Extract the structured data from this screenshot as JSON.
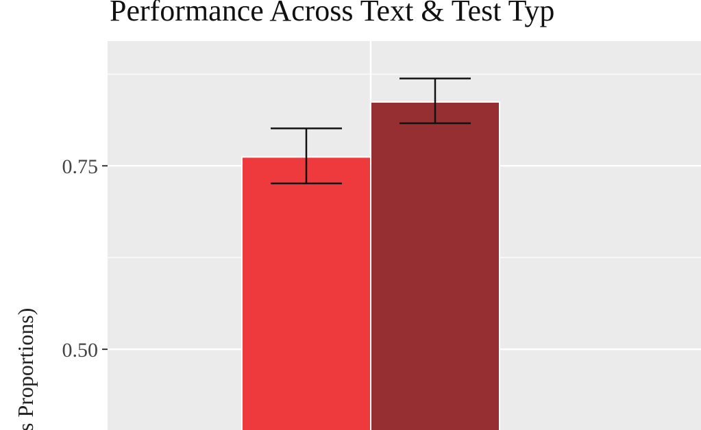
{
  "chart_data": {
    "type": "bar",
    "title": "Performance Across Text & Test Typ",
    "ylabel": "s Proportions)",
    "xlabel": "",
    "ylim": [
      0.39,
      0.92
    ],
    "yticks": [
      {
        "value": 0.5,
        "label": "0.50"
      },
      {
        "value": 0.75,
        "label": "0.75"
      }
    ],
    "y_minor_gridlines": [
      0.625,
      0.875
    ],
    "x_gridline_at": "bar-group-center",
    "grid": true,
    "legend": "none",
    "colors": {
      "panel_background": "#EBEBEB",
      "gridline": "#FFFFFF",
      "errorbar": "#111111"
    },
    "bars": [
      {
        "value": 0.762,
        "error_low": 0.726,
        "error_high": 0.801,
        "color": "#EE3A3D"
      },
      {
        "value": 0.837,
        "error_low": 0.808,
        "error_high": 0.869,
        "color": "#952F32"
      }
    ]
  }
}
